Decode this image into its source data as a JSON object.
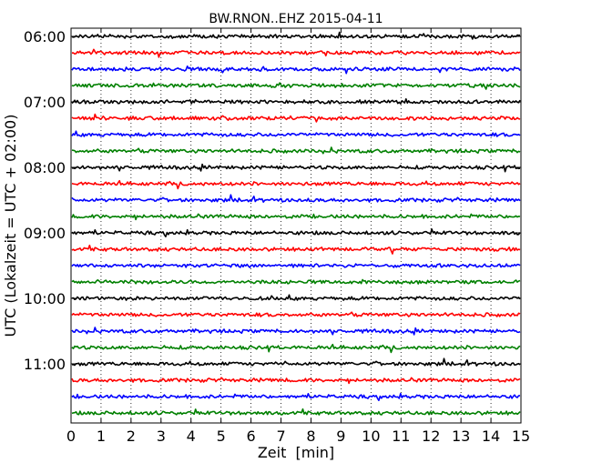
{
  "chart_data": {
    "type": "line",
    "title": "BW.RNON..EHZ 2015-04-11",
    "xlabel": "Zeit  [min]",
    "ylabel": "UTC (Lokalzeit = UTC + 02:00)",
    "xlim": [
      0,
      15
    ],
    "x_ticks": [
      "0",
      "1",
      "2",
      "3",
      "4",
      "5",
      "6",
      "7",
      "8",
      "9",
      "10",
      "11",
      "12",
      "13",
      "14",
      "15"
    ],
    "y_ticks": [
      "06:00",
      "07:00",
      "08:00",
      "09:00",
      "10:00",
      "11:00"
    ],
    "grid": "vertical dotted",
    "trace_colors": [
      "#000000",
      "#ff0000",
      "#0000ff",
      "#008000"
    ],
    "series": [
      {
        "start": "06:00",
        "color": "#000000"
      },
      {
        "start": "06:15",
        "color": "#ff0000"
      },
      {
        "start": "06:30",
        "color": "#0000ff"
      },
      {
        "start": "06:45",
        "color": "#008000"
      },
      {
        "start": "07:00",
        "color": "#000000"
      },
      {
        "start": "07:15",
        "color": "#ff0000"
      },
      {
        "start": "07:30",
        "color": "#0000ff"
      },
      {
        "start": "07:45",
        "color": "#008000"
      },
      {
        "start": "08:00",
        "color": "#000000"
      },
      {
        "start": "08:15",
        "color": "#ff0000"
      },
      {
        "start": "08:30",
        "color": "#0000ff"
      },
      {
        "start": "08:45",
        "color": "#008000"
      },
      {
        "start": "09:00",
        "color": "#000000"
      },
      {
        "start": "09:15",
        "color": "#ff0000"
      },
      {
        "start": "09:30",
        "color": "#0000ff"
      },
      {
        "start": "09:45",
        "color": "#008000"
      },
      {
        "start": "10:00",
        "color": "#000000"
      },
      {
        "start": "10:15",
        "color": "#ff0000"
      },
      {
        "start": "10:30",
        "color": "#0000ff"
      },
      {
        "start": "10:45",
        "color": "#008000"
      },
      {
        "start": "11:00",
        "color": "#000000"
      },
      {
        "start": "11:15",
        "color": "#ff0000"
      },
      {
        "start": "11:30",
        "color": "#0000ff"
      },
      {
        "start": "11:45",
        "color": "#008000"
      }
    ]
  }
}
